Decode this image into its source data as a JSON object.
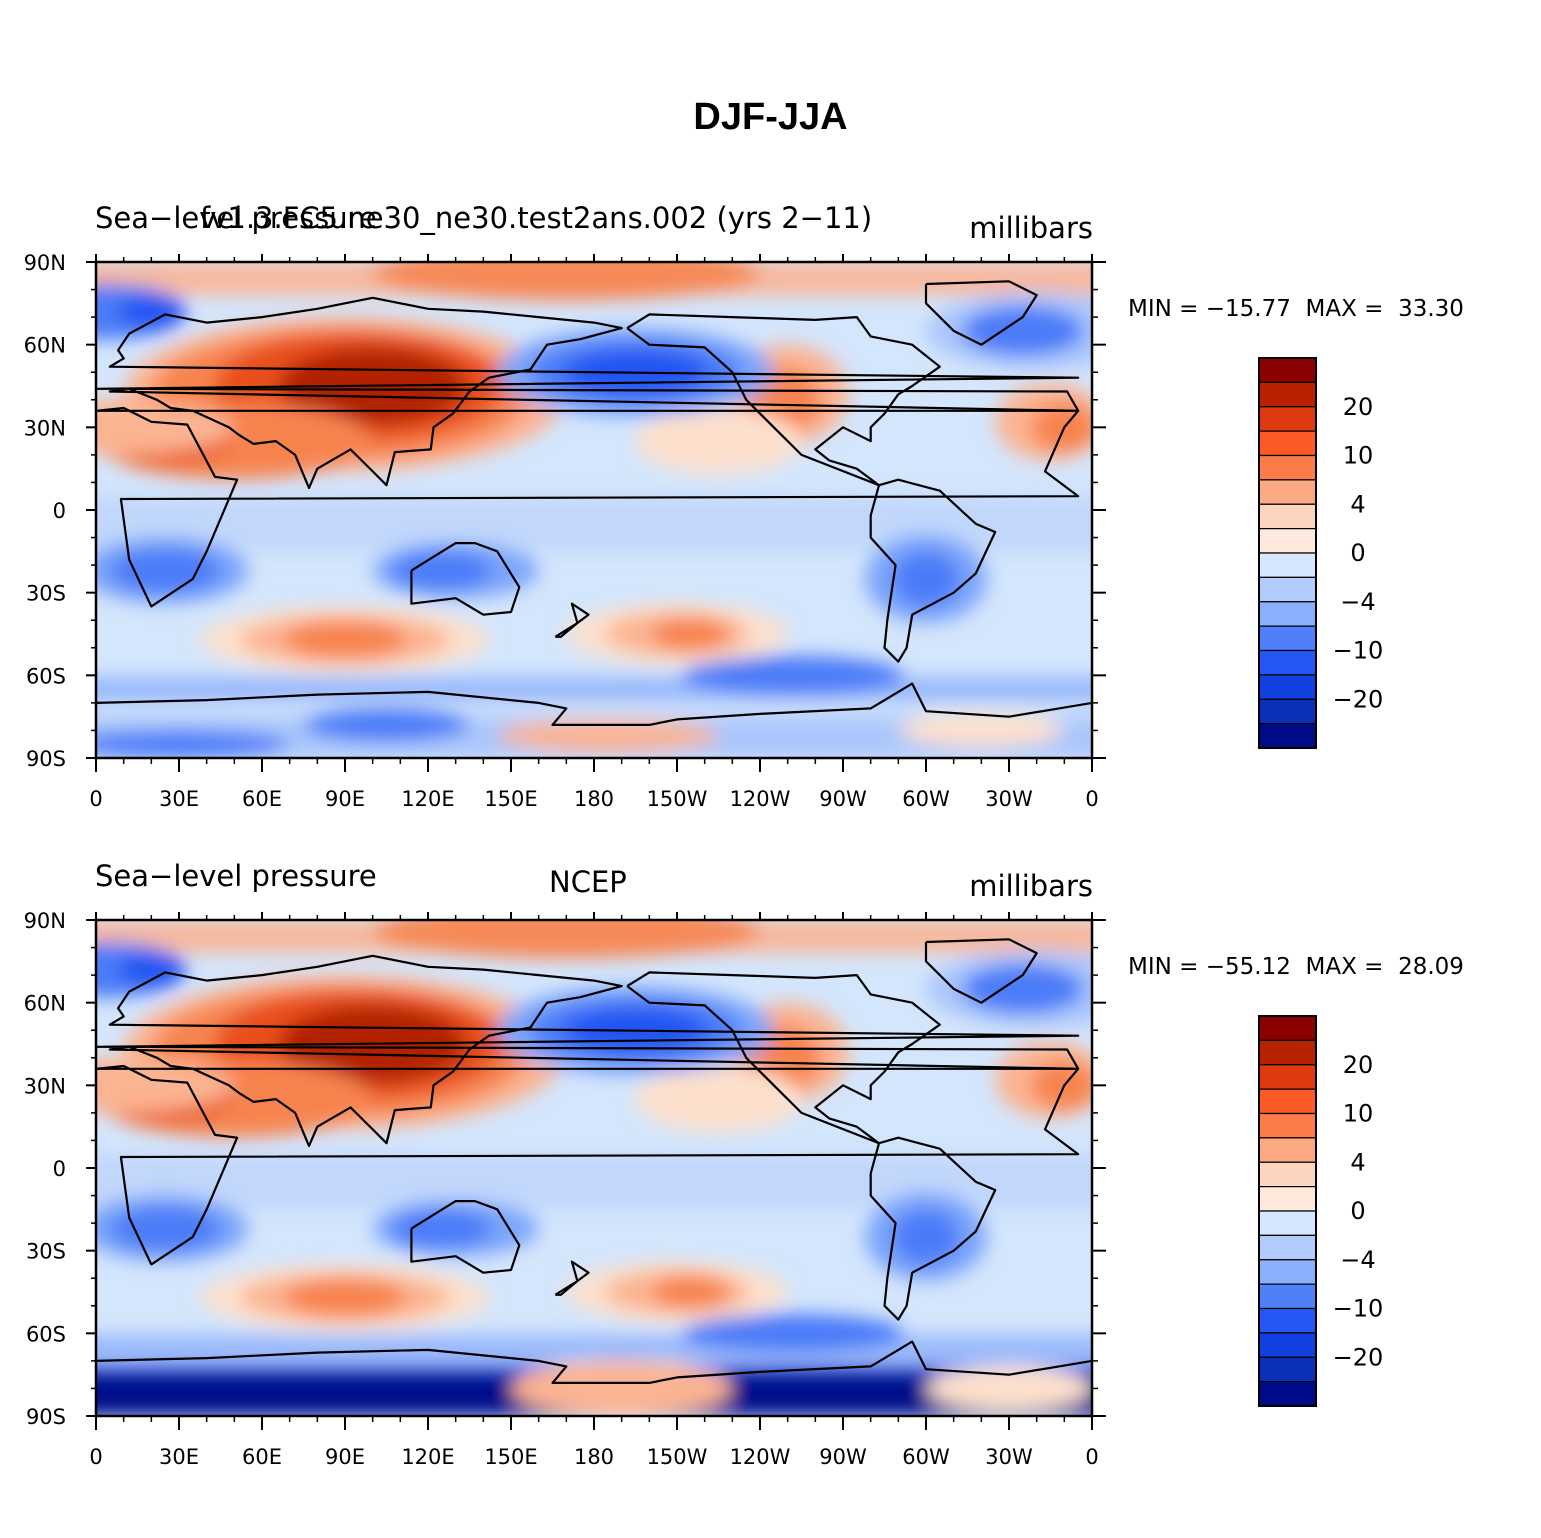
{
  "title": "DJF-JJA",
  "panels": [
    {
      "left_label": "Sea−level pressure",
      "center_label": "fv1.3.FC5.ne30_ne30.test2ans.002 (yrs 2−11)",
      "right_label": "millibars",
      "min_label": "MIN",
      "min_value": "−15.77",
      "max_label": "MAX",
      "max_value": "33.30"
    },
    {
      "left_label": "Sea−level pressure",
      "center_label": "NCEP",
      "right_label": "millibars",
      "min_label": "MIN",
      "min_value": "−55.12",
      "max_label": "MAX",
      "max_value": "28.09"
    }
  ],
  "lat_ticks": [
    "90N",
    "60N",
    "30N",
    "0",
    "30S",
    "60S",
    "90S"
  ],
  "lon_ticks": [
    "0",
    "30E",
    "60E",
    "90E",
    "120E",
    "150E",
    "180",
    "150W",
    "120W",
    "90W",
    "60W",
    "30W",
    "0"
  ],
  "colorbar": {
    "labels": [
      "20",
      "10",
      "4",
      "0",
      "−4",
      "−10",
      "−20"
    ],
    "colors": [
      "#8b0000",
      "#b92200",
      "#de3a10",
      "#fb5a26",
      "#fc7b48",
      "#fcaa84",
      "#fdd4bd",
      "#fee9dc",
      "#d4e7fd",
      "#b1ccfb",
      "#8aaffb",
      "#5080f9",
      "#2457f6",
      "#1240e0",
      "#0a2fb8",
      "#000b8a"
    ]
  },
  "palette": {
    "deep_red": "#b22200",
    "red": "#e8501f",
    "orange": "#f7844f",
    "salmon": "#fbb492",
    "peach": "#fde0cc",
    "pale_blue": "#d4e6fc",
    "light_blue": "#aac6fb",
    "mid_blue": "#7ba4fa",
    "blue": "#4b7cf8",
    "strong_blue": "#2355f2",
    "navy": "#000b8a"
  }
}
